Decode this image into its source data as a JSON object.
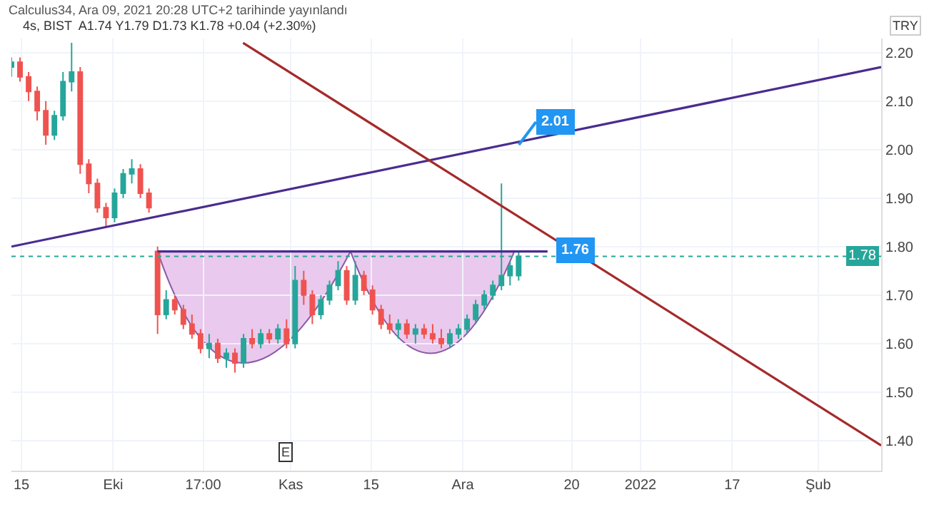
{
  "chart_data": {
    "type": "candlestick",
    "subtitle": "4s, BIST  A1.74 Y1.79 D1.73 K1.78 +0.04 (+2.30%)",
    "ylabel": "TRY",
    "annotations": [
      "Calculus34, Ara 09, 2021 20:28 UTC+2 tarihinde yayınlandı",
      "1.76",
      {
        "text": "2.01",
        "x": "2021-12-10T19:00",
        "y": 2.01
      },
      {
        "text": "E",
        "x": "2021-10-31"
      }
    ],
    "x": [
      "2021-09-13T06:00",
      "2021-09-14T18:00",
      "2021-09-16T06:00",
      "2021-09-17T18:00",
      "2021-09-19T06:00",
      "2021-09-20T18:00",
      "2021-09-22T06:00",
      "2021-09-23T18:00",
      "2021-09-25T06:00",
      "2021-09-26T18:00",
      "2021-09-28T06:00",
      "2021-09-29T18:00",
      "2021-10-01T06:00",
      "2021-10-02T18:00",
      "2021-10-04T06:00",
      "2021-10-05T18:00",
      "2021-10-07T06:00",
      "2021-10-08T18:00",
      "2021-10-10T06:00",
      "2021-10-11T18:00",
      "2021-10-13T06:00",
      "2021-10-14T18:00",
      "2021-10-16T06:00",
      "2021-10-17T18:00",
      "2021-10-19T06:00",
      "2021-10-20T18:00",
      "2021-10-22T06:00",
      "2021-10-23T18:00",
      "2021-10-25T06:00",
      "2021-10-26T18:00",
      "2021-10-28T06:00",
      "2021-10-29T18:00",
      "2021-10-31T06:00",
      "2021-11-01T18:00",
      "2021-11-03T06:00",
      "2021-11-04T18:00",
      "2021-11-06T06:00",
      "2021-11-07T18:00",
      "2021-11-09T06:00",
      "2021-11-10T18:00",
      "2021-11-12T06:00",
      "2021-11-13T18:00",
      "2021-11-15T06:00",
      "2021-11-16T18:00",
      "2021-11-18T06:00",
      "2021-11-19T18:00",
      "2021-11-21T06:00",
      "2021-11-22T18:00",
      "2021-11-24T06:00",
      "2021-11-25T18:00",
      "2021-11-27T06:00",
      "2021-11-28T18:00",
      "2021-11-30T06:00",
      "2021-12-01T18:00",
      "2021-12-03T06:00",
      "2021-12-04T18:00",
      "2021-12-06T06:00",
      "2021-12-07T18:00",
      "2021-12-09T06:00",
      "2021-12-10T18:00"
    ],
    "ohlc": [
      [
        2.17,
        2.19,
        2.15,
        2.18
      ],
      [
        2.18,
        2.19,
        2.14,
        2.15
      ],
      [
        2.15,
        2.16,
        2.1,
        2.12
      ],
      [
        2.12,
        2.13,
        2.06,
        2.08
      ],
      [
        2.08,
        2.1,
        2.01,
        2.03
      ],
      [
        2.03,
        2.08,
        2.02,
        2.07
      ],
      [
        2.07,
        2.16,
        2.06,
        2.14
      ],
      [
        2.14,
        2.22,
        2.12,
        2.16
      ],
      [
        2.16,
        2.17,
        1.95,
        1.97
      ],
      [
        1.97,
        1.98,
        1.91,
        1.93
      ],
      [
        1.93,
        1.94,
        1.87,
        1.88
      ],
      [
        1.88,
        1.89,
        1.84,
        1.86
      ],
      [
        1.86,
        1.92,
        1.85,
        1.91
      ],
      [
        1.91,
        1.96,
        1.9,
        1.95
      ],
      [
        1.95,
        1.98,
        1.93,
        1.96
      ],
      [
        1.96,
        1.97,
        1.9,
        1.91
      ],
      [
        1.91,
        1.92,
        1.87,
        1.88
      ],
      [
        1.79,
        1.8,
        1.62,
        1.66
      ],
      [
        1.66,
        1.71,
        1.65,
        1.69
      ],
      [
        1.69,
        1.7,
        1.66,
        1.67
      ],
      [
        1.67,
        1.68,
        1.63,
        1.64
      ],
      [
        1.64,
        1.66,
        1.61,
        1.62
      ],
      [
        1.62,
        1.63,
        1.58,
        1.59
      ],
      [
        1.59,
        1.62,
        1.57,
        1.6
      ],
      [
        1.6,
        1.61,
        1.56,
        1.57
      ],
      [
        1.57,
        1.59,
        1.55,
        1.58
      ],
      [
        1.58,
        1.59,
        1.54,
        1.56
      ],
      [
        1.56,
        1.62,
        1.55,
        1.61
      ],
      [
        1.61,
        1.63,
        1.59,
        1.6
      ],
      [
        1.6,
        1.63,
        1.59,
        1.62
      ],
      [
        1.62,
        1.63,
        1.6,
        1.61
      ],
      [
        1.61,
        1.64,
        1.6,
        1.63
      ],
      [
        1.63,
        1.65,
        1.59,
        1.6
      ],
      [
        1.6,
        1.76,
        1.59,
        1.73
      ],
      [
        1.73,
        1.75,
        1.68,
        1.7
      ],
      [
        1.7,
        1.71,
        1.64,
        1.66
      ],
      [
        1.66,
        1.7,
        1.65,
        1.69
      ],
      [
        1.69,
        1.73,
        1.68,
        1.72
      ],
      [
        1.72,
        1.77,
        1.71,
        1.75
      ],
      [
        1.75,
        1.76,
        1.68,
        1.69
      ],
      [
        1.69,
        1.77,
        1.68,
        1.74
      ],
      [
        1.74,
        1.75,
        1.7,
        1.71
      ],
      [
        1.71,
        1.72,
        1.66,
        1.67
      ],
      [
        1.67,
        1.68,
        1.63,
        1.64
      ],
      [
        1.64,
        1.66,
        1.62,
        1.63
      ],
      [
        1.63,
        1.65,
        1.61,
        1.64
      ],
      [
        1.64,
        1.65,
        1.61,
        1.62
      ],
      [
        1.62,
        1.64,
        1.6,
        1.63
      ],
      [
        1.63,
        1.64,
        1.61,
        1.62
      ],
      [
        1.62,
        1.64,
        1.6,
        1.61
      ],
      [
        1.61,
        1.63,
        1.59,
        1.6
      ],
      [
        1.6,
        1.63,
        1.59,
        1.62
      ],
      [
        1.62,
        1.64,
        1.61,
        1.63
      ],
      [
        1.63,
        1.66,
        1.62,
        1.65
      ],
      [
        1.65,
        1.69,
        1.64,
        1.68
      ],
      [
        1.68,
        1.71,
        1.67,
        1.7
      ],
      [
        1.7,
        1.73,
        1.69,
        1.72
      ],
      [
        1.72,
        1.93,
        1.71,
        1.74
      ],
      [
        1.74,
        1.77,
        1.72,
        1.76
      ],
      [
        1.74,
        1.79,
        1.73,
        1.78
      ]
    ],
    "colors": [
      "#26a69a",
      "#ef5350",
      "#ef5350",
      "#ef5350",
      "#ef5350",
      "#26a69a",
      "#26a69a",
      "#26a69a",
      "#ef5350",
      "#ef5350",
      "#ef5350",
      "#ef5350",
      "#26a69a",
      "#26a69a",
      "#26a69a",
      "#ef5350",
      "#ef5350",
      "#ef5350",
      "#26a69a",
      "#ef5350",
      "#ef5350",
      "#ef5350",
      "#ef5350",
      "#26a69a",
      "#ef5350",
      "#26a69a",
      "#ef5350",
      "#26a69a",
      "#ef5350",
      "#26a69a",
      "#ef5350",
      "#26a69a",
      "#ef5350",
      "#26a69a",
      "#ef5350",
      "#ef5350",
      "#26a69a",
      "#26a69a",
      "#26a69a",
      "#ef5350",
      "#26a69a",
      "#ef5350",
      "#ef5350",
      "#ef5350",
      "#ef5350",
      "#26a69a",
      "#ef5350",
      "#26a69a",
      "#ef5350",
      "#ef5350",
      "#ef5350",
      "#26a69a",
      "#26a69a",
      "#26a69a",
      "#26a69a",
      "#26a69a",
      "#26a69a",
      "#26a69a",
      "#26a69a",
      "#26a69a"
    ],
    "series": [
      {
        "type": "line",
        "color": "#4a2c8f",
        "x": [
          "2021-09-13T06:00",
          "2022-02-12"
        ],
        "values": [
          1.8,
          2.17
        ]
      },
      {
        "type": "line",
        "color": "#a52a2a",
        "x": [
          "2021-10-23T16:00",
          "2022-02-12"
        ],
        "values": [
          2.22,
          1.39
        ]
      },
      {
        "type": "line",
        "color": "#4a2c8f",
        "x": [
          "2021-10-08T18:00",
          "2021-12-15T19:00"
        ],
        "values": [
          1.79,
          1.79
        ]
      }
    ],
    "ref_lines": [
      {
        "axis": "y",
        "value": 1.78,
        "label": "1.78",
        "color": "#26a69a",
        "line_style": "dotted"
      }
    ],
    "xlim": [
      "2021-09-13T06:00",
      "2022-02-12"
    ],
    "xticks": [
      {
        "value": "2021-09-15",
        "label": "15"
      },
      {
        "value": "2021-10-01",
        "label": "Eki"
      },
      {
        "value": "2021-10-16T17:00",
        "label": "17:00"
      },
      {
        "value": "2021-11-01",
        "label": "Kas"
      },
      {
        "value": "2021-11-15",
        "label": "15"
      },
      {
        "value": "2021-12-01",
        "label": "Ara"
      },
      {
        "value": "2021-12-20",
        "label": "20"
      },
      {
        "value": "2022-01-01",
        "label": "2022"
      },
      {
        "value": "2022-01-17",
        "label": "17"
      },
      {
        "value": "2022-02-01",
        "label": "Şub"
      }
    ],
    "ylim": [
      1.338,
      2.229
    ],
    "yticks": [
      {
        "value": 1.4,
        "label": "1.40"
      },
      {
        "value": 1.5,
        "label": "1.50"
      },
      {
        "value": 1.6,
        "label": "1.60"
      },
      {
        "value": 1.7,
        "label": "1.70"
      },
      {
        "value": 1.8,
        "label": "1.80"
      },
      {
        "value": 1.9,
        "label": "1.90"
      },
      {
        "value": 2.0,
        "label": "2.00"
      },
      {
        "value": 2.1,
        "label": "2.10"
      },
      {
        "value": 2.2,
        "label": "2.20"
      }
    ],
    "grid": true
  }
}
